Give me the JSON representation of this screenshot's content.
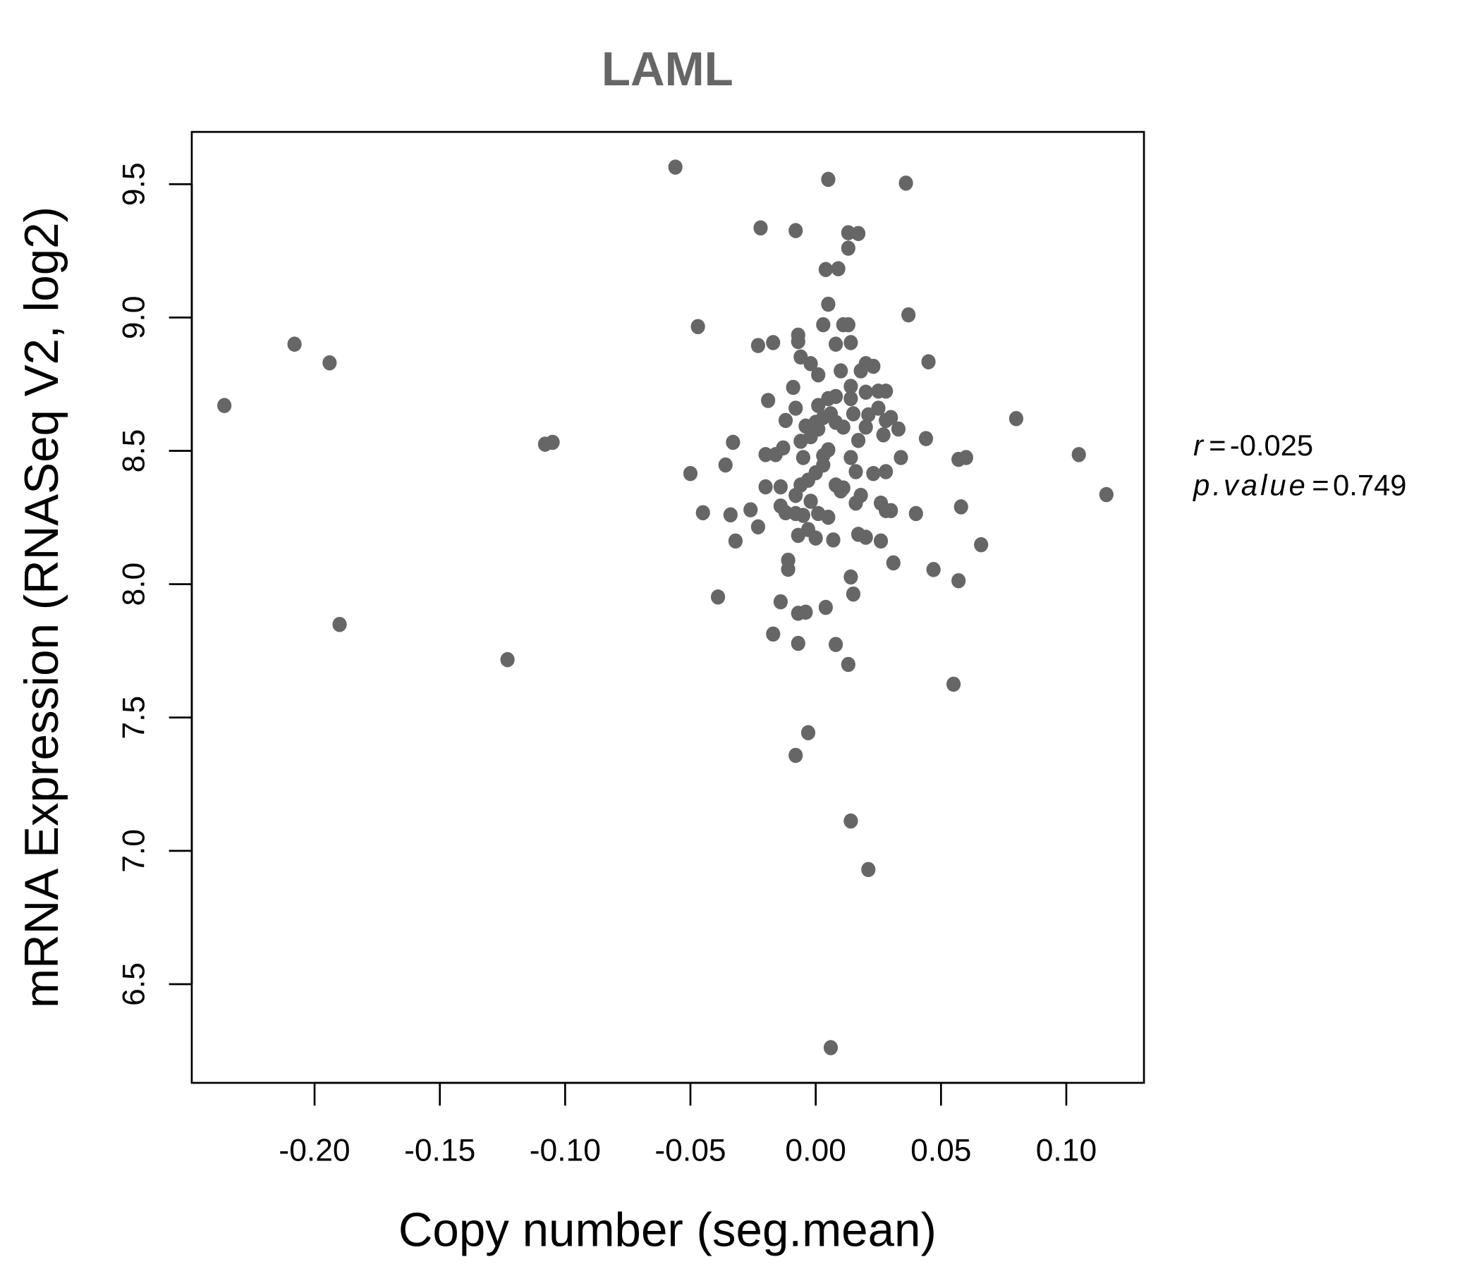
{
  "chart_data": {
    "type": "scatter",
    "title": "LAML",
    "xlabel": "Copy number (seg.mean)",
    "ylabel": "mRNA Expression (RNASeq V2, log2)",
    "xlim": [
      -0.249,
      0.131
    ],
    "ylim": [
      6.13,
      9.696
    ],
    "x_ticks": [
      -0.2,
      -0.15,
      -0.1,
      -0.05,
      0.0,
      0.05,
      0.1
    ],
    "x_tick_labels": [
      "-0.20",
      "-0.15",
      "-0.10",
      "-0.05",
      "0.00",
      "0.05",
      "0.10"
    ],
    "y_ticks": [
      6.5,
      7.0,
      7.5,
      8.0,
      8.5,
      9.0,
      9.5
    ],
    "y_tick_labels": [
      "6.5",
      "7.0",
      "7.5",
      "8.0",
      "8.5",
      "9.0",
      "9.5"
    ],
    "grid": false,
    "point_color": "#666666",
    "annotations": {
      "r_label": "r",
      "r_value": "-0.025",
      "p_label": "p.value",
      "p_value": "0.749",
      "equals": "="
    },
    "points": [
      [
        -0.056,
        9.564
      ],
      [
        0.005,
        9.518
      ],
      [
        0.036,
        9.504
      ],
      [
        -0.022,
        9.336
      ],
      [
        -0.008,
        9.326
      ],
      [
        0.013,
        9.318
      ],
      [
        0.017,
        9.315
      ],
      [
        0.013,
        9.26
      ],
      [
        0.004,
        9.18
      ],
      [
        0.009,
        9.183
      ],
      [
        0.005,
        9.05
      ],
      [
        0.037,
        9.01
      ],
      [
        -0.047,
        8.966
      ],
      [
        0.003,
        8.973
      ],
      [
        0.011,
        8.973
      ],
      [
        0.013,
        8.973
      ],
      [
        -0.208,
        8.9
      ],
      [
        -0.017,
        8.906
      ],
      [
        -0.023,
        8.895
      ],
      [
        -0.007,
        8.934
      ],
      [
        -0.007,
        8.91
      ],
      [
        0.008,
        8.9
      ],
      [
        0.014,
        8.906
      ],
      [
        -0.194,
        8.83
      ],
      [
        -0.006,
        8.852
      ],
      [
        -0.002,
        8.827
      ],
      [
        0.001,
        8.785
      ],
      [
        0.01,
        8.8
      ],
      [
        0.02,
        8.827
      ],
      [
        0.023,
        8.817
      ],
      [
        0.018,
        8.8
      ],
      [
        0.045,
        8.834
      ],
      [
        -0.236,
        8.67
      ],
      [
        -0.009,
        8.738
      ],
      [
        -0.019,
        8.689
      ],
      [
        -0.008,
        8.66
      ],
      [
        -0.012,
        8.614
      ],
      [
        0.001,
        8.67
      ],
      [
        0.005,
        8.696
      ],
      [
        0.008,
        8.704
      ],
      [
        0.014,
        8.742
      ],
      [
        0.014,
        8.696
      ],
      [
        0.02,
        8.72
      ],
      [
        0.025,
        8.724
      ],
      [
        0.028,
        8.724
      ],
      [
        0.003,
        8.625
      ],
      [
        0.006,
        8.639
      ],
      [
        0.008,
        8.607
      ],
      [
        0.015,
        8.639
      ],
      [
        0.021,
        8.635
      ],
      [
        0.025,
        8.66
      ],
      [
        0.028,
        8.614
      ],
      [
        0.03,
        8.625
      ],
      [
        0.08,
        8.621
      ],
      [
        -0.004,
        8.593
      ],
      [
        0.0,
        8.607
      ],
      [
        0.001,
        8.582
      ],
      [
        0.011,
        8.589
      ],
      [
        0.02,
        8.589
      ],
      [
        0.033,
        8.582
      ],
      [
        0.027,
        8.56
      ],
      [
        0.017,
        8.539
      ],
      [
        -0.033,
        8.532
      ],
      [
        -0.013,
        8.511
      ],
      [
        -0.006,
        8.536
      ],
      [
        -0.002,
        8.553
      ],
      [
        0.005,
        8.504
      ],
      [
        0.044,
        8.546
      ],
      [
        -0.108,
        8.525
      ],
      [
        -0.105,
        8.532
      ],
      [
        -0.02,
        8.486
      ],
      [
        -0.016,
        8.486
      ],
      [
        -0.005,
        8.475
      ],
      [
        0.003,
        8.482
      ],
      [
        0.014,
        8.475
      ],
      [
        0.034,
        8.475
      ],
      [
        0.057,
        8.468
      ],
      [
        0.06,
        8.475
      ],
      [
        0.105,
        8.486
      ],
      [
        -0.036,
        8.447
      ],
      [
        -0.05,
        8.415
      ],
      [
        0.003,
        8.447
      ],
      [
        0.016,
        8.422
      ],
      [
        0.023,
        8.415
      ],
      [
        0.028,
        8.422
      ],
      [
        -0.02,
        8.365
      ],
      [
        -0.014,
        8.365
      ],
      [
        -0.006,
        8.372
      ],
      [
        -0.003,
        8.39
      ],
      [
        0.0,
        8.418
      ],
      [
        0.008,
        8.372
      ],
      [
        0.01,
        8.35
      ],
      [
        0.011,
        8.361
      ],
      [
        0.116,
        8.336
      ],
      [
        -0.008,
        8.333
      ],
      [
        -0.002,
        8.311
      ],
      [
        0.018,
        8.333
      ],
      [
        0.016,
        8.304
      ],
      [
        0.026,
        8.304
      ],
      [
        0.058,
        8.29
      ],
      [
        -0.045,
        8.268
      ],
      [
        -0.034,
        8.26
      ],
      [
        -0.026,
        8.279
      ],
      [
        -0.014,
        8.293
      ],
      [
        -0.012,
        8.268
      ],
      [
        -0.008,
        8.265
      ],
      [
        -0.005,
        8.258
      ],
      [
        0.001,
        8.265
      ],
      [
        0.005,
        8.251
      ],
      [
        0.028,
        8.276
      ],
      [
        0.03,
        8.276
      ],
      [
        0.04,
        8.265
      ],
      [
        -0.023,
        8.215
      ],
      [
        -0.007,
        8.183
      ],
      [
        -0.003,
        8.205
      ],
      [
        0.0,
        8.173
      ],
      [
        0.007,
        8.166
      ],
      [
        0.017,
        8.187
      ],
      [
        0.02,
        8.176
      ],
      [
        0.026,
        8.162
      ],
      [
        -0.032,
        8.162
      ],
      [
        0.066,
        8.148
      ],
      [
        -0.011,
        8.09
      ],
      [
        -0.011,
        8.056
      ],
      [
        0.031,
        8.08
      ],
      [
        0.047,
        8.055
      ],
      [
        0.014,
        8.027
      ],
      [
        0.057,
        8.013
      ],
      [
        -0.039,
        7.952
      ],
      [
        0.015,
        7.963
      ],
      [
        -0.014,
        7.934
      ],
      [
        -0.007,
        7.891
      ],
      [
        -0.004,
        7.895
      ],
      [
        0.004,
        7.913
      ],
      [
        -0.19,
        7.849
      ],
      [
        -0.017,
        7.813
      ],
      [
        -0.007,
        7.778
      ],
      [
        0.008,
        7.774
      ],
      [
        -0.123,
        7.717
      ],
      [
        0.013,
        7.699
      ],
      [
        0.055,
        7.625
      ],
      [
        -0.003,
        7.443
      ],
      [
        -0.008,
        7.358
      ],
      [
        0.014,
        7.112
      ],
      [
        0.021,
        6.93
      ],
      [
        0.006,
        6.262
      ]
    ]
  }
}
